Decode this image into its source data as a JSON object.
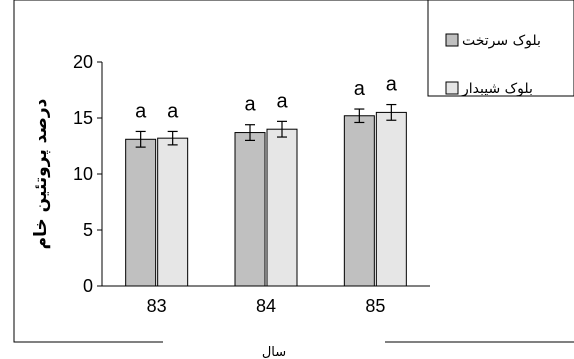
{
  "chart_data": {
    "type": "bar",
    "categories": [
      "83",
      "84",
      "85"
    ],
    "series": [
      {
        "name": "بلوک سرتخت",
        "values": [
          13.1,
          13.7,
          15.2
        ],
        "errors": [
          0.7,
          0.7,
          0.6
        ],
        "labels": [
          "a",
          "a",
          "a"
        ],
        "color": "#c0c0c0"
      },
      {
        "name": "بلوک شیبدار",
        "values": [
          13.2,
          14.0,
          15.5
        ],
        "errors": [
          0.6,
          0.7,
          0.7
        ],
        "labels": [
          "a",
          "a",
          "a"
        ],
        "color": "#e6e6e6"
      }
    ],
    "ylabel": "درصد پروتئین خام",
    "xlabel": "سال",
    "ylim": [
      0,
      20
    ],
    "yticks": [
      0,
      5,
      10,
      15,
      20
    ],
    "grid": false,
    "legend": "top-right"
  }
}
